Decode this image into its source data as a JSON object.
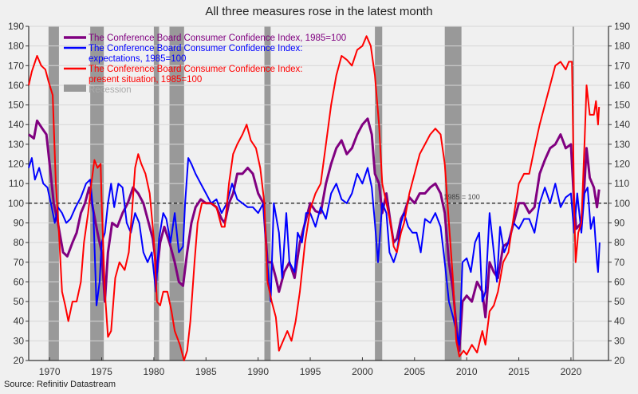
{
  "chart_data": {
    "type": "line",
    "title": "All three measures rose in the latest month",
    "source": "Source: Refinitiv Datastream",
    "xlim": [
      1968,
      2023.6
    ],
    "ylim": [
      20,
      190
    ],
    "x_ticks": [
      1970,
      1975,
      1980,
      1985,
      1990,
      1995,
      2000,
      2005,
      2010,
      2015,
      2020
    ],
    "y_ticks": [
      20,
      30,
      40,
      50,
      60,
      70,
      80,
      90,
      100,
      110,
      120,
      130,
      140,
      150,
      160,
      170,
      180,
      190
    ],
    "grid": true,
    "legend_position": "top-left",
    "reference_line": {
      "value": 100,
      "label": "1985 = 100"
    },
    "recession_label": "Recession",
    "recession_color": "#999999",
    "recessions": [
      [
        1969.9,
        1970.9
      ],
      [
        1973.9,
        1975.2
      ],
      [
        1980.0,
        1980.5
      ],
      [
        1981.5,
        1982.9
      ],
      [
        1990.6,
        1991.2
      ],
      [
        2001.2,
        2001.9
      ],
      [
        2007.9,
        2009.5
      ],
      [
        2020.15,
        2020.3
      ]
    ],
    "series": [
      {
        "name": "The Conference Board Consumer Confidence Index, 1985=100",
        "legend_lines": [
          "The Conference Board Consumer Confidence Index, 1985=100"
        ],
        "color": "#800080",
        "width": 3,
        "x": [
          1968,
          1968.5,
          1968.8,
          1969.3,
          1969.7,
          1970.0,
          1970.4,
          1970.8,
          1971.3,
          1971.7,
          1972.2,
          1972.6,
          1973.0,
          1973.4,
          1973.8,
          1974.2,
          1974.6,
          1975.0,
          1975.3,
          1975.6,
          1976.0,
          1976.5,
          1977.0,
          1977.5,
          1978.0,
          1978.5,
          1979.0,
          1979.5,
          1979.9,
          1980.3,
          1980.6,
          1981.0,
          1981.5,
          1982.0,
          1982.4,
          1982.8,
          1983.2,
          1983.6,
          1984.0,
          1984.5,
          1985.0,
          1985.5,
          1986.0,
          1986.5,
          1986.8,
          1987.2,
          1987.6,
          1988.0,
          1988.5,
          1989.0,
          1989.5,
          1990.0,
          1990.5,
          1990.9,
          1991.3,
          1991.7,
          1992.0,
          1992.5,
          1993.0,
          1993.5,
          1994.0,
          1994.5,
          1995.0,
          1995.5,
          1996.0,
          1996.5,
          1997.0,
          1997.5,
          1998.0,
          1998.5,
          1999.0,
          1999.5,
          2000.0,
          2000.5,
          2000.9,
          2001.2,
          2001.6,
          2001.9,
          2002.3,
          2002.7,
          2003.0,
          2003.3,
          2003.7,
          2004.0,
          2004.5,
          2005.0,
          2005.5,
          2006.0,
          2006.5,
          2007.0,
          2007.5,
          2007.9,
          2008.3,
          2008.7,
          2009.0,
          2009.3,
          2009.6,
          2010.0,
          2010.5,
          2011.0,
          2011.5,
          2011.8,
          2012.2,
          2012.6,
          2013.0,
          2013.5,
          2014.0,
          2014.5,
          2015.0,
          2015.5,
          2016.0,
          2016.5,
          2017.0,
          2017.5,
          2018.0,
          2018.5,
          2019.0,
          2019.5,
          2020.0,
          2020.3,
          2020.5,
          2021.0,
          2021.3,
          2021.5,
          2021.8,
          2022.2,
          2022.5,
          2022.7
        ],
        "y": [
          135,
          133,
          142,
          138,
          135,
          120,
          100,
          90,
          75,
          73,
          80,
          85,
          95,
          100,
          108,
          96,
          85,
          75,
          50,
          75,
          90,
          88,
          95,
          100,
          108,
          105,
          100,
          90,
          82,
          65,
          80,
          88,
          80,
          70,
          60,
          58,
          75,
          90,
          98,
          102,
          100,
          100,
          98,
          92,
          90,
          100,
          105,
          115,
          115,
          118,
          115,
          105,
          100,
          70,
          70,
          62,
          55,
          65,
          70,
          62,
          80,
          90,
          100,
          96,
          95,
          110,
          120,
          128,
          132,
          125,
          128,
          135,
          140,
          143,
          135,
          115,
          110,
          95,
          105,
          90,
          80,
          82,
          92,
          95,
          103,
          100,
          105,
          105,
          108,
          110,
          105,
          95,
          70,
          55,
          38,
          25,
          50,
          53,
          50,
          60,
          55,
          42,
          70,
          65,
          62,
          78,
          80,
          90,
          100,
          100,
          95,
          98,
          115,
          122,
          128,
          130,
          135,
          128,
          130,
          100,
          87,
          90,
          110,
          128,
          113,
          108,
          98,
          107
        ]
      },
      {
        "name": "The Conference Board Consumer Confidence Index: expectations, 1985=100",
        "legend_lines": [
          "The Conference Board Consumer Confidence Index:",
          "expectations, 1985=100"
        ],
        "color": "#0000ff",
        "width": 2,
        "x": [
          1968,
          1968.3,
          1968.6,
          1969.0,
          1969.4,
          1969.8,
          1970.2,
          1970.5,
          1970.8,
          1971.2,
          1971.6,
          1972.0,
          1972.5,
          1973.0,
          1973.5,
          1973.9,
          1974.2,
          1974.5,
          1974.8,
          1975.0,
          1975.3,
          1975.6,
          1975.9,
          1976.2,
          1976.6,
          1977.0,
          1977.4,
          1977.8,
          1978.2,
          1978.6,
          1979.0,
          1979.4,
          1979.8,
          1980.2,
          1980.5,
          1980.9,
          1981.2,
          1981.6,
          1982.0,
          1982.4,
          1982.8,
          1983.0,
          1983.3,
          1983.6,
          1984.0,
          1984.5,
          1985.0,
          1985.5,
          1986.0,
          1986.5,
          1987.0,
          1987.5,
          1988.0,
          1988.5,
          1989.0,
          1989.5,
          1990.0,
          1990.5,
          1990.8,
          1991.2,
          1991.5,
          1992.0,
          1992.3,
          1992.7,
          1993.0,
          1993.5,
          1993.8,
          1994.2,
          1994.6,
          1995.0,
          1995.5,
          1996.0,
          1996.5,
          1997.0,
          1997.5,
          1998.0,
          1998.5,
          1999.0,
          1999.5,
          2000.0,
          2000.5,
          2000.9,
          2001.2,
          2001.5,
          2001.9,
          2002.3,
          2002.6,
          2003.0,
          2003.3,
          2003.7,
          2004.0,
          2004.4,
          2004.8,
          2005.2,
          2005.6,
          2006.0,
          2006.5,
          2007.0,
          2007.5,
          2007.9,
          2008.3,
          2008.7,
          2009.0,
          2009.3,
          2009.6,
          2010.0,
          2010.4,
          2010.8,
          2011.2,
          2011.5,
          2011.8,
          2012.2,
          2012.5,
          2012.9,
          2013.2,
          2013.6,
          2014.0,
          2014.5,
          2015.0,
          2015.5,
          2016.0,
          2016.5,
          2017.0,
          2017.5,
          2018.0,
          2018.5,
          2019.0,
          2019.5,
          2020.0,
          2020.3,
          2020.6,
          2021.0,
          2021.3,
          2021.6,
          2021.9,
          2022.2,
          2022.5,
          2022.6,
          2022.75
        ],
        "y": [
          118,
          123,
          112,
          118,
          110,
          108,
          98,
          90,
          98,
          95,
          90,
          92,
          98,
          103,
          110,
          112,
          95,
          48,
          60,
          80,
          85,
          100,
          110,
          98,
          110,
          108,
          90,
          85,
          95,
          90,
          75,
          70,
          75,
          55,
          82,
          95,
          92,
          80,
          95,
          75,
          78,
          100,
          123,
          120,
          115,
          110,
          105,
          100,
          102,
          95,
          100,
          110,
          102,
          100,
          98,
          98,
          95,
          100,
          75,
          50,
          100,
          85,
          62,
          95,
          70,
          65,
          85,
          80,
          95,
          95,
          88,
          98,
          92,
          105,
          110,
          102,
          100,
          105,
          115,
          110,
          118,
          108,
          90,
          70,
          100,
          95,
          75,
          70,
          75,
          90,
          95,
          88,
          85,
          85,
          75,
          92,
          90,
          95,
          88,
          70,
          50,
          42,
          35,
          28,
          70,
          72,
          65,
          80,
          85,
          50,
          55,
          95,
          80,
          60,
          88,
          75,
          80,
          90,
          87,
          92,
          92,
          85,
          100,
          108,
          100,
          110,
          98,
          103,
          105,
          85,
          105,
          85,
          105,
          108,
          87,
          93,
          70,
          65,
          80
        ]
      },
      {
        "name": "The Conference Board Consumer Confidence Index: present situation, 1985=100",
        "legend_lines": [
          "The Conference Board Consumer Confidence Index:",
          "present situation, 1985=100"
        ],
        "color": "#ff0000",
        "width": 2,
        "x": [
          1968,
          1968.3,
          1968.8,
          1969.2,
          1969.6,
          1969.9,
          1970.3,
          1970.6,
          1970.9,
          1971.2,
          1971.5,
          1971.8,
          1972.2,
          1972.6,
          1973.0,
          1973.3,
          1973.7,
          1974.0,
          1974.3,
          1974.6,
          1974.9,
          1975.0,
          1975.3,
          1975.6,
          1975.9,
          1976.3,
          1976.7,
          1977.2,
          1977.6,
          1977.9,
          1978.2,
          1978.5,
          1978.8,
          1979.2,
          1979.6,
          1980.0,
          1980.3,
          1980.6,
          1980.9,
          1981.3,
          1981.7,
          1982.0,
          1982.5,
          1982.9,
          1983.2,
          1983.5,
          1983.9,
          1984.2,
          1984.6,
          1985.0,
          1985.5,
          1986.0,
          1986.5,
          1986.8,
          1987.2,
          1987.6,
          1988.0,
          1988.5,
          1988.9,
          1989.3,
          1989.8,
          1990.2,
          1990.6,
          1990.9,
          1991.3,
          1991.7,
          1992.0,
          1992.4,
          1992.8,
          1993.2,
          1993.6,
          1994.0,
          1994.5,
          1995.0,
          1995.5,
          1996.0,
          1996.5,
          1997.0,
          1997.5,
          1998.0,
          1998.5,
          1999.0,
          1999.5,
          2000.0,
          2000.4,
          2000.8,
          2001.2,
          2001.6,
          2001.9,
          2002.3,
          2002.7,
          2003.0,
          2003.3,
          2003.7,
          2004.0,
          2004.5,
          2005.0,
          2005.5,
          2006.0,
          2006.5,
          2007.0,
          2007.5,
          2007.9,
          2008.3,
          2008.7,
          2009.0,
          2009.3,
          2009.7,
          2010.0,
          2010.5,
          2011.0,
          2011.5,
          2011.8,
          2012.2,
          2012.6,
          2013.0,
          2013.5,
          2014.0,
          2014.5,
          2015.0,
          2015.5,
          2016.0,
          2016.5,
          2017.0,
          2017.5,
          2018.0,
          2018.5,
          2019.0,
          2019.5,
          2019.8,
          2020.1,
          2020.3,
          2020.45,
          2020.7,
          2021.0,
          2021.3,
          2021.5,
          2021.8,
          2022.2,
          2022.4,
          2022.6,
          2022.7
        ],
        "y": [
          160,
          167,
          175,
          170,
          168,
          162,
          155,
          110,
          85,
          55,
          48,
          40,
          50,
          50,
          60,
          80,
          95,
          110,
          122,
          118,
          120,
          100,
          55,
          32,
          35,
          62,
          70,
          66,
          75,
          95,
          118,
          125,
          120,
          115,
          105,
          82,
          50,
          48,
          55,
          55,
          45,
          35,
          28,
          20,
          25,
          40,
          70,
          90,
          100,
          100,
          100,
          98,
          88,
          88,
          110,
          125,
          130,
          135,
          140,
          132,
          128,
          118,
          100,
          60,
          50,
          42,
          25,
          30,
          35,
          30,
          40,
          55,
          80,
          97,
          105,
          110,
          130,
          150,
          165,
          175,
          173,
          170,
          178,
          180,
          185,
          180,
          165,
          140,
          110,
          100,
          90,
          78,
          75,
          85,
          90,
          105,
          115,
          125,
          130,
          135,
          138,
          135,
          120,
          90,
          60,
          30,
          22,
          25,
          23,
          28,
          24,
          35,
          28,
          45,
          48,
          55,
          70,
          75,
          93,
          110,
          115,
          115,
          128,
          140,
          150,
          160,
          170,
          172,
          168,
          172,
          172,
          100,
          70,
          85,
          90,
          130,
          160,
          145,
          145,
          152,
          140,
          149
        ]
      }
    ]
  }
}
